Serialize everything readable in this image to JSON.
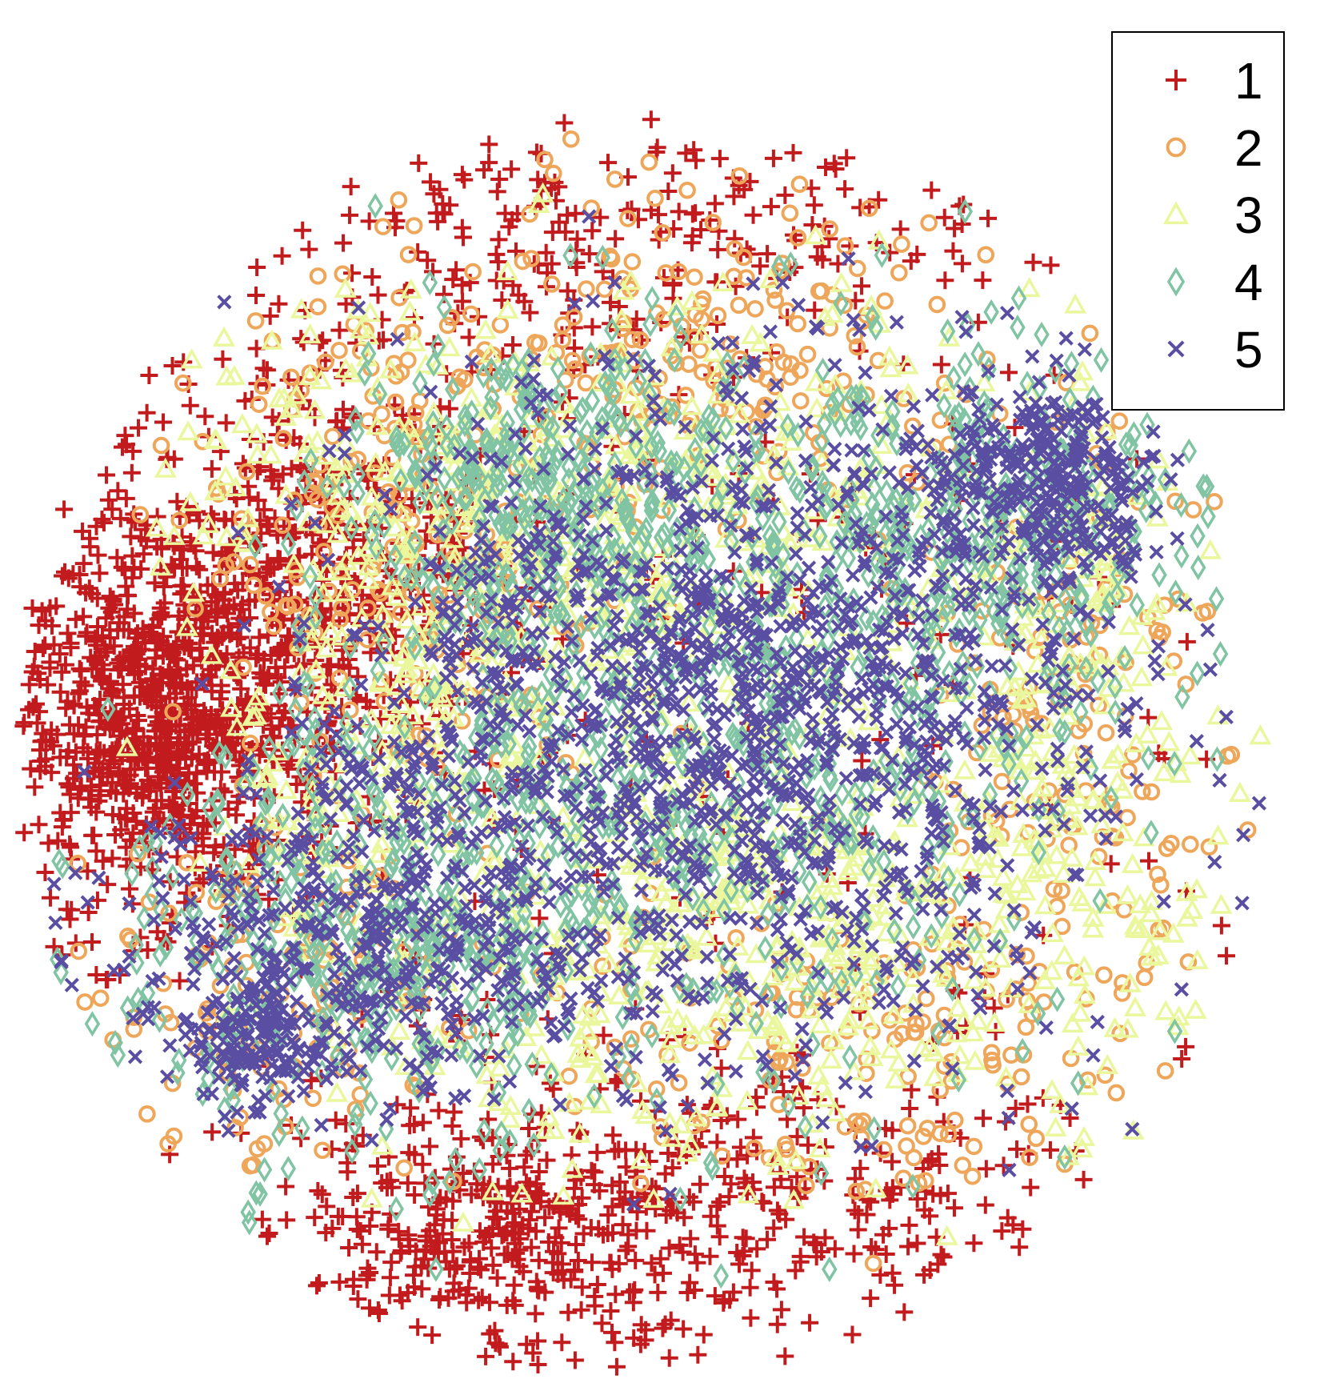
{
  "chart_data": {
    "type": "scatter",
    "title": "",
    "xlabel": "",
    "ylabel": "",
    "axes_visible": false,
    "grid": false,
    "legend_position": "top-right",
    "xlim": [
      -1,
      1
    ],
    "ylim": [
      -1,
      1
    ],
    "series": [
      {
        "name": "1",
        "marker": "plus",
        "color": "#c21b1e",
        "point_count_approx": 2600
      },
      {
        "name": "2",
        "marker": "circle",
        "color": "#eea75a",
        "point_count_approx": 900
      },
      {
        "name": "3",
        "marker": "triangle",
        "color": "#eaf79c",
        "point_count_approx": 1400
      },
      {
        "name": "4",
        "marker": "diamond",
        "color": "#80c4a4",
        "point_count_approx": 1700
      },
      {
        "name": "5",
        "marker": "x",
        "color": "#5a4ea2",
        "point_count_approx": 2300
      }
    ],
    "clusters": {
      "1": [
        {
          "x": -0.78,
          "y": 0.02,
          "sx": 0.12,
          "sy": 0.14,
          "w": 0.3
        },
        {
          "x": -0.55,
          "y": 0.25,
          "sx": 0.16,
          "sy": 0.16,
          "w": 0.22
        },
        {
          "x": -0.22,
          "y": -0.75,
          "sx": 0.16,
          "sy": 0.1,
          "w": 0.14
        },
        {
          "x": -0.05,
          "y": 0.78,
          "sx": 0.3,
          "sy": 0.1,
          "w": 0.1
        },
        {
          "x": 0.2,
          "y": -0.7,
          "sx": 0.25,
          "sy": 0.1,
          "w": 0.1
        },
        {
          "x": 0.0,
          "y": 0.0,
          "sx": 0.6,
          "sy": 0.6,
          "w": 0.14
        }
      ],
      "2": [
        {
          "x": -0.35,
          "y": 0.3,
          "sx": 0.18,
          "sy": 0.18,
          "w": 0.25
        },
        {
          "x": 0.05,
          "y": 0.6,
          "sx": 0.25,
          "sy": 0.12,
          "w": 0.2
        },
        {
          "x": 0.35,
          "y": -0.45,
          "sx": 0.25,
          "sy": 0.15,
          "w": 0.2
        },
        {
          "x": -0.55,
          "y": -0.35,
          "sx": 0.16,
          "sy": 0.14,
          "w": 0.15
        },
        {
          "x": 0.7,
          "y": 0.05,
          "sx": 0.12,
          "sy": 0.25,
          "w": 0.2
        }
      ],
      "3": [
        {
          "x": -0.05,
          "y": 0.35,
          "sx": 0.32,
          "sy": 0.18,
          "w": 0.35
        },
        {
          "x": 0.2,
          "y": -0.3,
          "sx": 0.32,
          "sy": 0.18,
          "w": 0.35
        },
        {
          "x": -0.4,
          "y": 0.05,
          "sx": 0.15,
          "sy": 0.25,
          "w": 0.15
        },
        {
          "x": 0.7,
          "y": 0.1,
          "sx": 0.1,
          "sy": 0.25,
          "w": 0.15
        }
      ],
      "4": [
        {
          "x": 0.1,
          "y": 0.05,
          "sx": 0.32,
          "sy": 0.28,
          "w": 0.45
        },
        {
          "x": -0.45,
          "y": -0.3,
          "sx": 0.2,
          "sy": 0.16,
          "w": 0.25
        },
        {
          "x": -0.15,
          "y": 0.4,
          "sx": 0.15,
          "sy": 0.1,
          "w": 0.15
        },
        {
          "x": 0.6,
          "y": 0.35,
          "sx": 0.15,
          "sy": 0.12,
          "w": 0.15
        }
      ],
      "5": [
        {
          "x": 0.15,
          "y": 0.05,
          "sx": 0.3,
          "sy": 0.25,
          "w": 0.6
        },
        {
          "x": -0.45,
          "y": -0.28,
          "sx": 0.18,
          "sy": 0.13,
          "w": 0.2
        },
        {
          "x": -0.62,
          "y": -0.45,
          "sx": 0.06,
          "sy": 0.05,
          "w": 0.06
        },
        {
          "x": 0.65,
          "y": 0.4,
          "sx": 0.1,
          "sy": 0.08,
          "w": 0.14
        }
      ]
    }
  }
}
